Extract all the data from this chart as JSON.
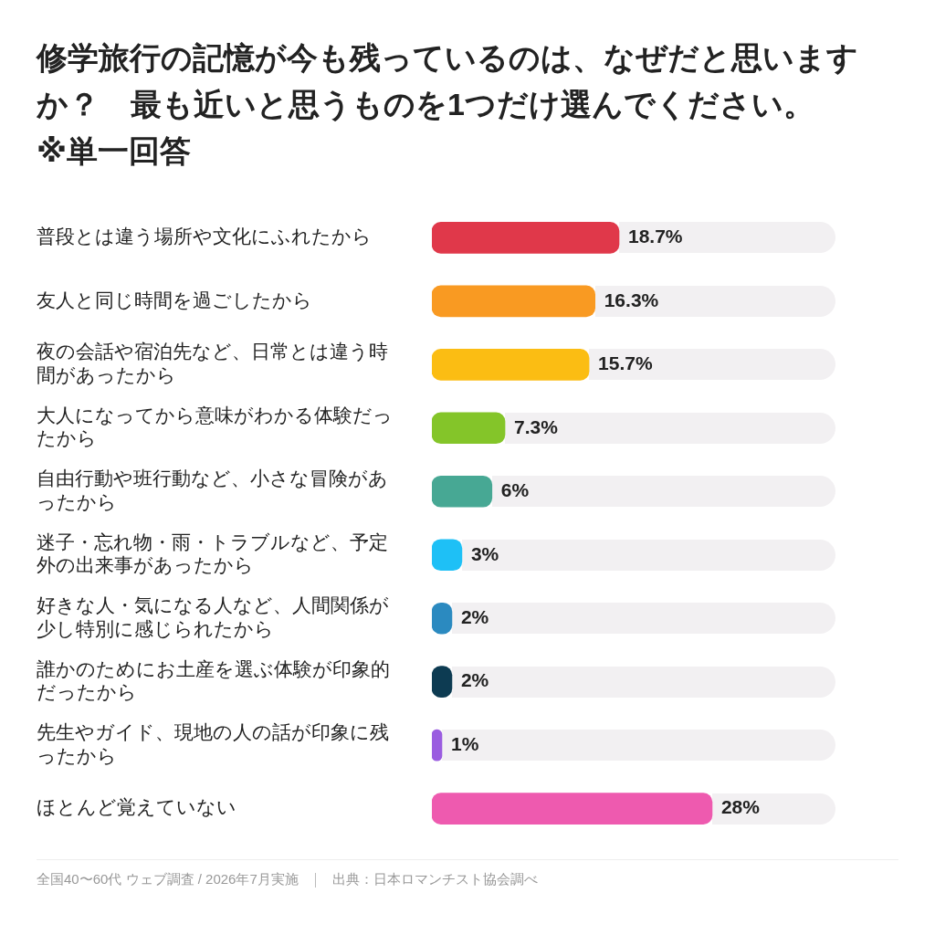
{
  "chart_data": {
    "type": "bar",
    "orientation": "horizontal",
    "title": "修学旅行の記憶が今も残っているのは、なぜだと思いますか？　最も近いと思うものを1つだけ選んでください。　※単一回答",
    "categories": [
      "普段とは違う場所や文化にふれたから",
      "友人と同じ時間を過ごしたから",
      "夜の会話や宿泊先など、日常とは違う時間があったから",
      "大人になってから意味がわかる体験だったから",
      "自由行動や班行動など、小さな冒険があったから",
      "迷子・忘れ物・雨・トラブルなど、予定外の出来事があったから",
      "好きな人・気になる人など、人間関係が少し特別に感じられたから",
      "誰かのためにお土産を選ぶ体験が印象的だったから",
      "先生やガイド、現地の人の話が印象に残ったから",
      "ほとんど覚えていない"
    ],
    "values": [
      18.7,
      16.3,
      15.7,
      7.3,
      6,
      3,
      2,
      2,
      1,
      28
    ],
    "value_labels": [
      "18.7%",
      "16.3%",
      "15.7%",
      "7.3%",
      "6%",
      "3%",
      "2%",
      "2%",
      "1%",
      "28%"
    ],
    "colors": [
      "#e0384a",
      "#f99a22",
      "#fbbd13",
      "#84c529",
      "#47a894",
      "#1ec0f6",
      "#2b8ac0",
      "#0d3b52",
      "#9a5ce0",
      "#ee5aaf"
    ],
    "grid": false,
    "legend": false,
    "annotations": [
      "全国40〜60代 ウェブ調査 / 2026年7月実施",
      "出典：日本ロマンチスト協会調べ"
    ]
  }
}
